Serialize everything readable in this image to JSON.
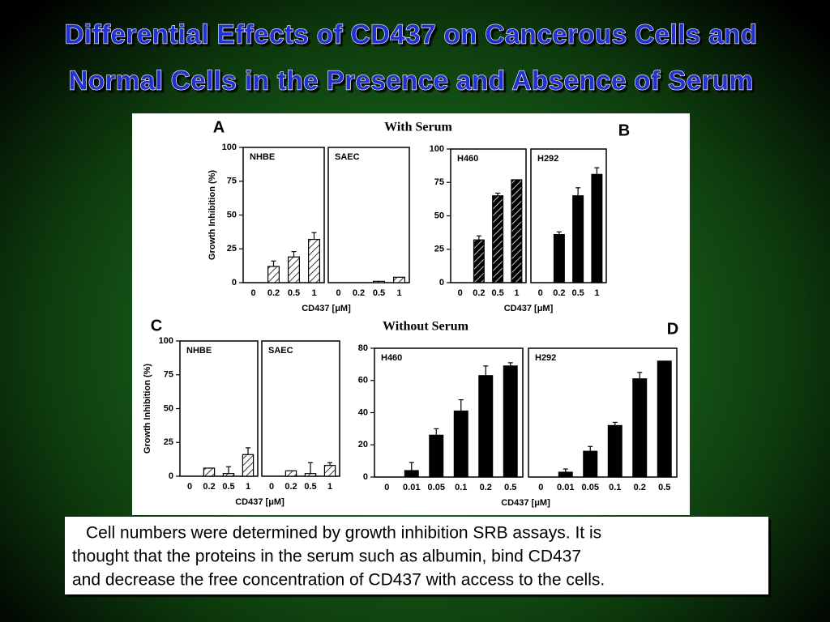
{
  "slide_title": [
    "Differential Effects of CD437 on Cancerous Cells and",
    "Normal Cells in the Presence and Absence of Serum"
  ],
  "figure": {
    "headings": [
      "With Serum",
      "Without Serum"
    ]
  },
  "chart_data": [
    {
      "type": "bar",
      "letter": "A",
      "ylabel": "Growth Inhibition (%)",
      "xlabel": "CD437 [μM]",
      "ylim": [
        0,
        100
      ],
      "yticks": [
        0,
        25,
        50,
        75,
        100
      ],
      "categories": [
        "0",
        "0.2",
        "0.5",
        "1"
      ],
      "series": [
        {
          "name": "NHBE",
          "fill": "hatch-light",
          "values": [
            0,
            12,
            19,
            32
          ],
          "errors": [
            0,
            4,
            4,
            5
          ]
        },
        {
          "name": "SAEC",
          "fill": "hatch-light",
          "values": [
            0,
            0,
            1,
            4
          ],
          "errors": [
            0,
            0,
            0,
            0
          ]
        }
      ]
    },
    {
      "type": "bar",
      "letter": "B",
      "xlabel": "CD437 [μM]",
      "ylim": [
        0,
        100
      ],
      "yticks": [
        0,
        25,
        50,
        75,
        100
      ],
      "categories": [
        "0",
        "0.2",
        "0.5",
        "1"
      ],
      "series": [
        {
          "name": "H460",
          "fill": "hatch-dark",
          "values": [
            0,
            32,
            65,
            77
          ],
          "errors": [
            0,
            3,
            2,
            0
          ]
        },
        {
          "name": "H292",
          "fill": "solid",
          "values": [
            0,
            36,
            65,
            81
          ],
          "errors": [
            0,
            2,
            6,
            5
          ]
        }
      ]
    },
    {
      "type": "bar",
      "letter": "C",
      "ylabel": "Growth Inhibition (%)",
      "xlabel": "CD437 [μM]",
      "ylim": [
        0,
        100
      ],
      "yticks": [
        0,
        25,
        50,
        75,
        100
      ],
      "categories": [
        "0",
        "0.2",
        "0.5",
        "1"
      ],
      "series": [
        {
          "name": "NHBE",
          "fill": "hatch-light",
          "values": [
            0,
            6,
            2,
            16
          ],
          "errors": [
            0,
            0,
            5,
            5
          ]
        },
        {
          "name": "SAEC",
          "fill": "hatch-light",
          "values": [
            0,
            4,
            2,
            8
          ],
          "errors": [
            0,
            0,
            8,
            2
          ]
        }
      ]
    },
    {
      "type": "bar",
      "letter": "D",
      "xlabel": "CD437 [μM]",
      "ylim": [
        0,
        80
      ],
      "yticks": [
        0,
        20,
        40,
        60,
        80
      ],
      "categories": [
        "0",
        "0.01",
        "0.05",
        "0.1",
        "0.2",
        "0.5"
      ],
      "series": [
        {
          "name": "H460",
          "fill": "solid",
          "values": [
            0,
            4,
            26,
            41,
            63,
            69
          ],
          "errors": [
            0,
            5,
            4,
            7,
            6,
            2
          ]
        },
        {
          "name": "H292",
          "fill": "solid",
          "values": [
            0,
            3,
            16,
            32,
            61,
            72
          ],
          "errors": [
            0,
            2,
            3,
            2,
            4,
            0
          ]
        }
      ]
    }
  ],
  "caption": [
    "Cell numbers were determined by growth inhibition SRB assays. It is",
    "thought that the proteins in the serum such as albumin, bind CD437",
    "and decrease the free concentration of CD437 with access to the cells."
  ]
}
